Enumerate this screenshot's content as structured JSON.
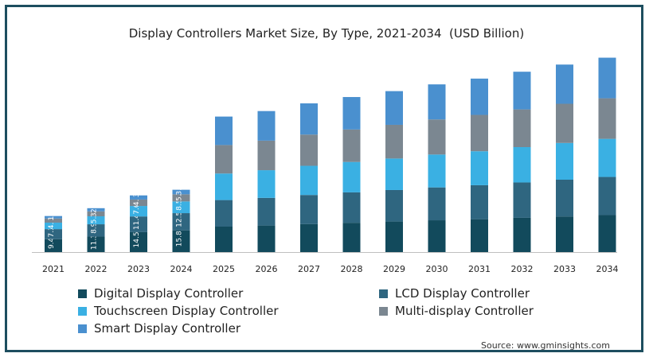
{
  "chart_data": {
    "type": "bar",
    "stacked": true,
    "title": "Display Controllers Market Size, By Type, 2021-2034  (USD Billion)",
    "categories": [
      "2021",
      "2022",
      "2023",
      "2024",
      "2025",
      "2026",
      "2027",
      "2028",
      "2029",
      "2030",
      "2031",
      "2032",
      "2033",
      "2034"
    ],
    "series": [
      {
        "name": "Digital Display Controller",
        "color": "#124a5c",
        "values": [
          9.4,
          11.3,
          14.5,
          15.8,
          18.5,
          19.3,
          20.3,
          21.3,
          22.2,
          23.1,
          23.9,
          24.9,
          25.9,
          26.9
        ],
        "labels": [
          "9.4",
          "11.3",
          "14.5",
          "15.8",
          null,
          null,
          null,
          null,
          null,
          null,
          null,
          null,
          null,
          null
        ]
      },
      {
        "name": "LCD Display Controller",
        "color": "#2f6680",
        "values": [
          7.3,
          8.9,
          11.4,
          12.5,
          19.3,
          20.1,
          21.2,
          22.1,
          22.9,
          23.9,
          24.7,
          25.7,
          26.7,
          27.7
        ],
        "labels": [
          "7.3",
          "8.9",
          "11.4",
          "12.5",
          null,
          null,
          null,
          null,
          null,
          null,
          null,
          null,
          null,
          null
        ]
      },
      {
        "name": "Touchscreen Display Controller",
        "color": "#3ab0e3",
        "values": [
          4.7,
          5.8,
          7.6,
          8.5,
          19.3,
          20.1,
          21.2,
          22.1,
          22.9,
          23.9,
          24.7,
          25.7,
          26.7,
          27.7
        ],
        "labels": [
          "4.7",
          "5.8",
          "7.6",
          "8.5",
          null,
          null,
          null,
          null,
          null,
          null,
          null,
          null,
          null,
          null
        ]
      },
      {
        "name": "Multi-display Controller",
        "color": "#7b8791",
        "values": [
          3,
          3.6,
          4.7,
          5.2,
          20.7,
          21.5,
          22.7,
          23.6,
          24.5,
          25.5,
          26.4,
          27.4,
          28.5,
          29.5
        ],
        "labels": [
          "3",
          "3.6",
          "4.7",
          "5.2",
          null,
          null,
          null,
          null,
          null,
          null,
          null,
          null,
          null,
          null
        ]
      },
      {
        "name": "Smart Display Controller",
        "color": "#4a90cf",
        "values": [
          1.8,
          2.3,
          3,
          3.3,
          20.7,
          21.5,
          22.7,
          23.6,
          24.5,
          25.5,
          26.4,
          27.4,
          28.5,
          29.5
        ],
        "labels": [
          "1.8",
          "2.3",
          "3",
          "3.3",
          null,
          null,
          null,
          null,
          null,
          null,
          null,
          null,
          null,
          null
        ]
      }
    ],
    "legend_position": "bottom",
    "grid": false
  },
  "source": "Source: www.gminsights.com"
}
